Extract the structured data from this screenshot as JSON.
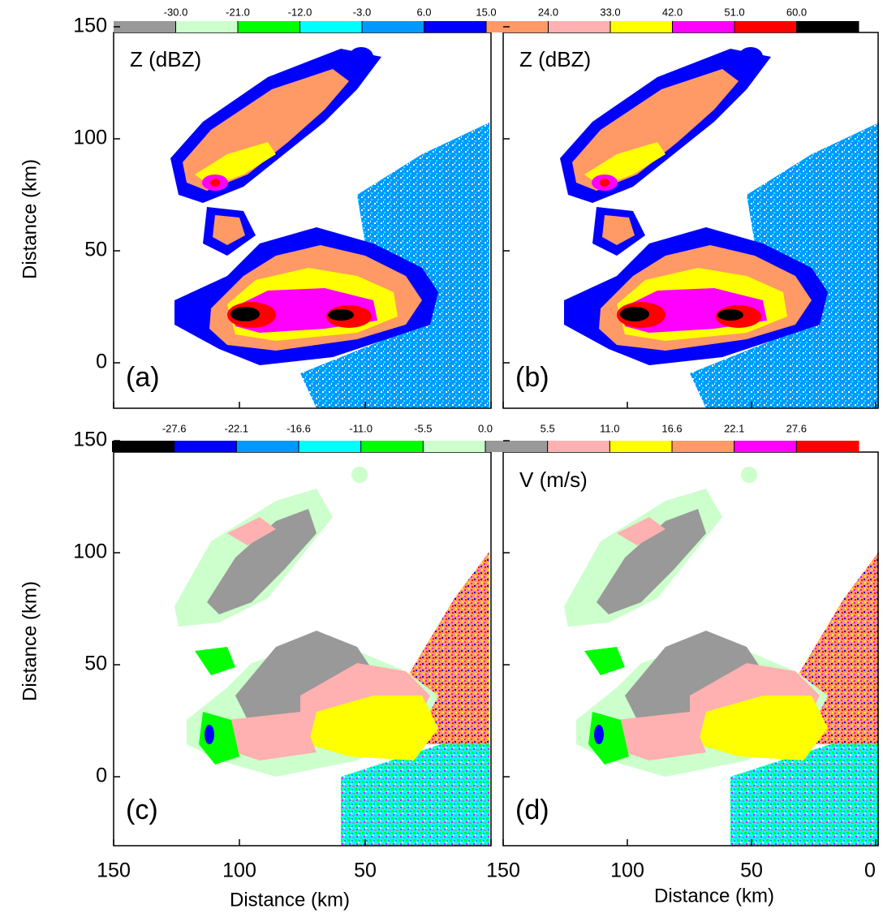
{
  "z_colorbar": {
    "labels": [
      "-30.0",
      "-21.0",
      "-12.0",
      "-3.0",
      "6.0",
      "15.0",
      "24.0",
      "33.0",
      "42.0",
      "51.0",
      "60.0"
    ],
    "colors": [
      "#999999",
      "#ccffcc",
      "#00ff00",
      "#00ffff",
      "#0099ff",
      "#0000ff",
      "#ff9966",
      "#ffb0b0",
      "#ffff00",
      "#ff00ff",
      "#ff0000",
      "#000000"
    ]
  },
  "v_colorbar": {
    "labels": [
      "-27.6",
      "-22.1",
      "-16.6",
      "-11.0",
      "-5.5",
      "0.0",
      "5.5",
      "11.0",
      "16.6",
      "22.1",
      "27.6"
    ],
    "colors": [
      "#000000",
      "#0000ff",
      "#0099ff",
      "#00ffff",
      "#00ff00",
      "#ccffcc",
      "#999999",
      "#ffb0b0",
      "#ffff00",
      "#ff9966",
      "#ff00ff",
      "#ff0000"
    ]
  },
  "panels": [
    {
      "letter": "(a)",
      "title": "Z  (dBZ)"
    },
    {
      "letter": "(b)",
      "title": "Z  (dBZ)"
    },
    {
      "letter": "(c)"
    },
    {
      "letter": "(d)",
      "title": "V (m/s)"
    }
  ],
  "y_axis": {
    "label": "Distance  (km)",
    "ticks": [
      "150",
      "100",
      "50",
      "0"
    ]
  },
  "x_axis": {
    "label": "Distance  (km)",
    "ticks": [
      "150",
      "100",
      "50",
      "0"
    ]
  }
}
